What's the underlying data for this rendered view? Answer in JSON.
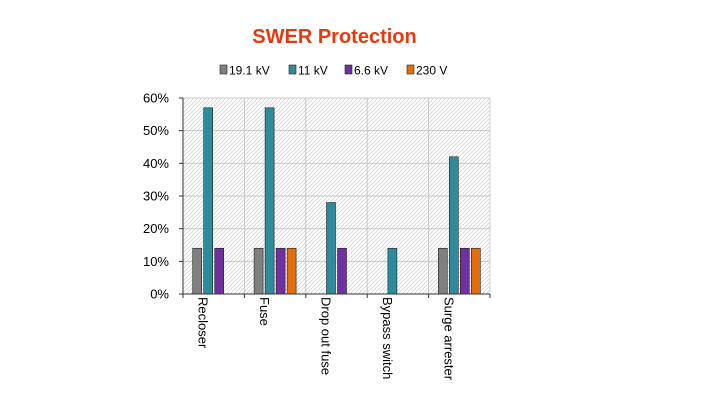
{
  "chart_data": {
    "type": "bar",
    "title": "SWER Protection",
    "title_color": "#e8380d",
    "categories": [
      "Recloser",
      "Fuse",
      "Drop out fuse",
      "Bypass switch",
      "Surge arrester"
    ],
    "series": [
      {
        "name": "19.1 kV",
        "color": "#808080",
        "values": [
          14,
          14,
          0,
          0,
          14
        ]
      },
      {
        "name": "11 kV",
        "color": "#2e8b9c",
        "values": [
          57,
          57,
          28,
          14,
          42
        ]
      },
      {
        "name": "6.6 kV",
        "color": "#7030a0",
        "values": [
          14,
          14,
          14,
          0,
          14
        ]
      },
      {
        "name": "230 V",
        "color": "#e46c0a",
        "values": [
          0,
          14,
          0,
          0,
          14
        ]
      }
    ],
    "ylim": [
      0,
      60
    ],
    "yticks": [
      "0%",
      "10%",
      "20%",
      "30%",
      "40%",
      "50%",
      "60%"
    ],
    "xlabel": "",
    "ylabel": "",
    "grid": true,
    "legend": "top"
  }
}
